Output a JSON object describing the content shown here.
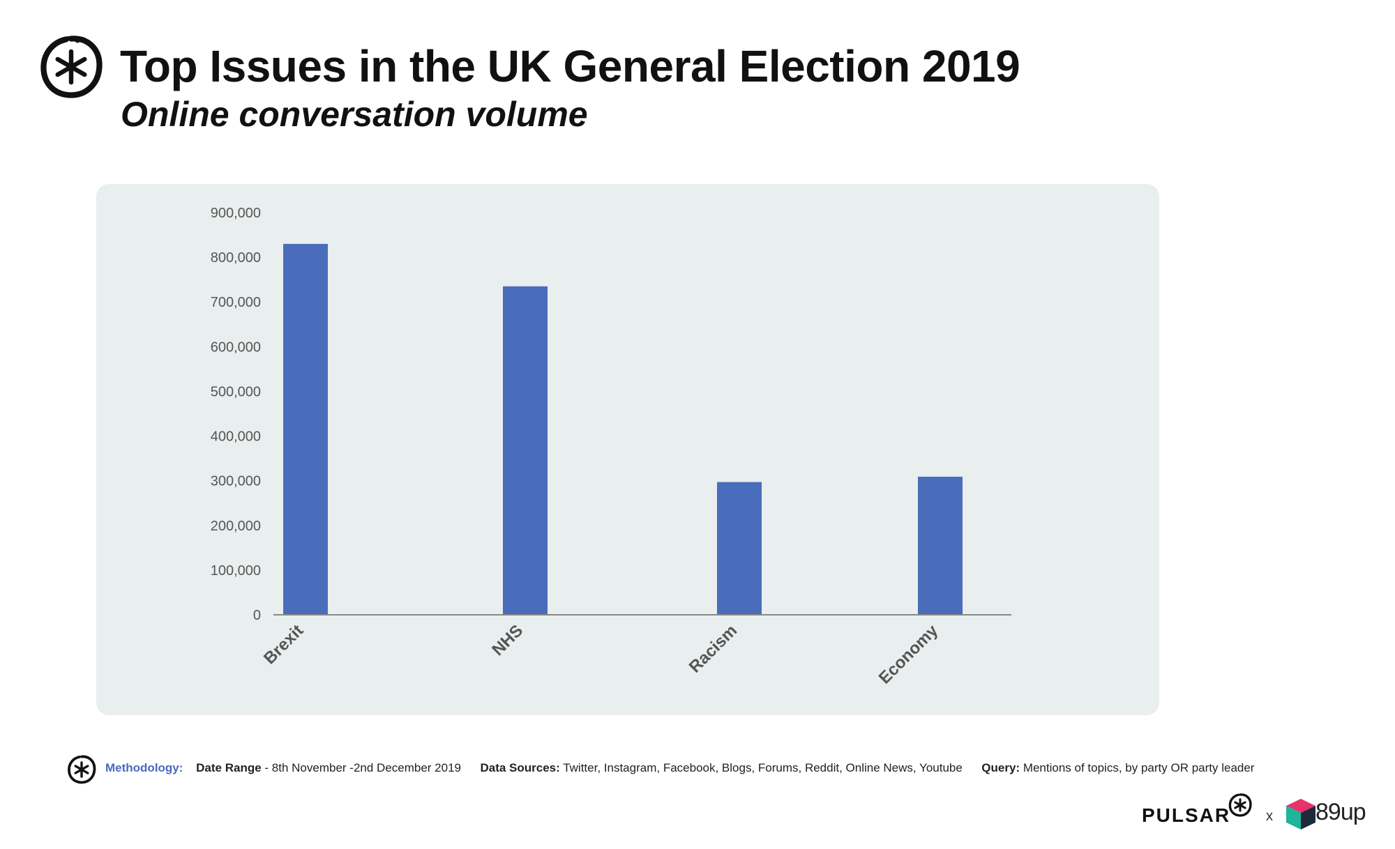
{
  "header": {
    "title": "Top Issues in the UK General Election 2019",
    "subtitle": "Online conversation volume"
  },
  "chart_data": {
    "type": "bar",
    "categories": [
      "Brexit",
      "NHS",
      "Racism",
      "Economy"
    ],
    "values": [
      830000,
      735000,
      297000,
      309000
    ],
    "ylim": [
      0,
      900000
    ],
    "yticks": [
      "0",
      "100,000",
      "200,000",
      "300,000",
      "400,000",
      "500,000",
      "600,000",
      "700,000",
      "800,000",
      "900,000"
    ],
    "grid": false,
    "legend": "none",
    "bar_color": "#4a6dbb",
    "axis_color": "#888888",
    "background": "#e9eeee"
  },
  "footer": {
    "methodology_label": "Methodology:",
    "date_label": "Date Range",
    "date_value": " - 8th November -2nd December 2019",
    "sources_label": "Data Sources:",
    "sources_value": " Twitter, Instagram, Facebook, Blogs, Forums, Reddit, Online News, Youtube",
    "query_label": "Query:",
    "query_value": " Mentions of topics, by party OR party leader"
  },
  "brand": {
    "pulsar": "PULSAR",
    "separator": "x",
    "partner": "89up",
    "icons": [
      "pulsar-star-icon",
      "89up-cube-icon"
    ]
  }
}
